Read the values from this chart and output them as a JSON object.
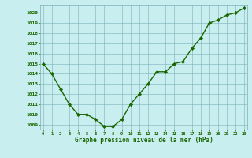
{
  "hours": [
    0,
    1,
    2,
    3,
    4,
    5,
    6,
    7,
    8,
    9,
    10,
    11,
    12,
    13,
    14,
    15,
    16,
    17,
    18,
    19,
    20,
    21,
    22,
    23
  ],
  "pressure": [
    1015.0,
    1014.0,
    1012.5,
    1011.0,
    1010.0,
    1010.0,
    1009.5,
    1008.8,
    1008.8,
    1009.5,
    1011.0,
    1012.0,
    1013.0,
    1014.2,
    1014.2,
    1015.0,
    1015.2,
    1016.5,
    1017.5,
    1019.0,
    1019.3,
    1019.8,
    1020.0,
    1020.5
  ],
  "ylim_min": 1008.5,
  "ylim_max": 1020.8,
  "yticks": [
    1009,
    1010,
    1011,
    1012,
    1013,
    1014,
    1015,
    1016,
    1017,
    1018,
    1019,
    1020
  ],
  "xlabel": "Graphe pression niveau de la mer (hPa)",
  "line_color": "#1a6600",
  "marker_color": "#1a6600",
  "bg_color": "#c8eef0",
  "grid_color": "#7ab0b8",
  "text_color": "#1a6600",
  "marker": "D",
  "marker_size": 2.2,
  "linewidth": 1.0
}
